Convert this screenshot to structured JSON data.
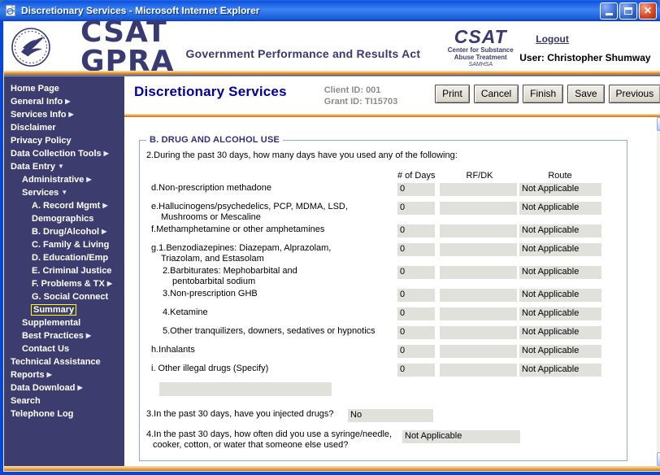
{
  "window": {
    "title": "Discretionary Services - Microsoft Internet Explorer"
  },
  "banner": {
    "logotype": "CSAT GPRA",
    "subtitle": "Government Performance and Results Act",
    "csat_logo": {
      "line1": "CSAT",
      "line2": "Center for Substance",
      "line3": "Abuse Treatment",
      "line4": "SAMHSA"
    },
    "logout_label": "Logout",
    "user_label": "User: Christopher Shumway"
  },
  "sidebar": {
    "items": [
      {
        "label": "Home Page",
        "indent": 0,
        "arrow": null,
        "selected": false
      },
      {
        "label": "General Info",
        "indent": 0,
        "arrow": "right",
        "selected": false
      },
      {
        "label": "Services Info",
        "indent": 0,
        "arrow": "right",
        "selected": false
      },
      {
        "label": "Disclaimer",
        "indent": 0,
        "arrow": null,
        "selected": false
      },
      {
        "label": "Privacy Policy",
        "indent": 0,
        "arrow": null,
        "selected": false
      },
      {
        "label": "Data Collection Tools",
        "indent": 0,
        "arrow": "right",
        "selected": false
      },
      {
        "label": "Data Entry",
        "indent": 0,
        "arrow": "down",
        "selected": false
      },
      {
        "label": "Administrative",
        "indent": 1,
        "arrow": "right",
        "selected": false
      },
      {
        "label": "Services",
        "indent": 1,
        "arrow": "down",
        "selected": false
      },
      {
        "label": "A. Record Mgmt",
        "indent": 2,
        "arrow": "right",
        "selected": false
      },
      {
        "label": "Demographics",
        "indent": 2,
        "arrow": null,
        "selected": false
      },
      {
        "label": "B. Drug/Alcohol",
        "indent": 2,
        "arrow": "right",
        "selected": false
      },
      {
        "label": "C. Family & Living",
        "indent": 2,
        "arrow": null,
        "selected": false
      },
      {
        "label": "D. Education/Emp",
        "indent": 2,
        "arrow": null,
        "selected": false
      },
      {
        "label": "E. Criminal Justice",
        "indent": 2,
        "arrow": null,
        "selected": false
      },
      {
        "label": "F. Problems & TX",
        "indent": 2,
        "arrow": "right",
        "selected": false
      },
      {
        "label": "G. Social Connect",
        "indent": 2,
        "arrow": null,
        "selected": false
      },
      {
        "label": "Summary",
        "indent": 2,
        "arrow": null,
        "selected": true
      },
      {
        "label": "Supplemental",
        "indent": 1,
        "arrow": null,
        "selected": false
      },
      {
        "label": "Best Practices",
        "indent": 1,
        "arrow": "right",
        "selected": false
      },
      {
        "label": "Contact Us",
        "indent": 1,
        "arrow": null,
        "selected": false
      },
      {
        "label": "Technical Assistance",
        "indent": 0,
        "arrow": null,
        "selected": false
      },
      {
        "label": "Reports",
        "indent": 0,
        "arrow": "right",
        "selected": false
      },
      {
        "label": "Data Download",
        "indent": 0,
        "arrow": "right",
        "selected": false
      },
      {
        "label": "Search",
        "indent": 0,
        "arrow": null,
        "selected": false
      },
      {
        "label": "Telephone Log",
        "indent": 0,
        "arrow": null,
        "selected": false
      }
    ]
  },
  "content": {
    "title": "Discretionary Services",
    "client_id": "Client ID: 001",
    "grant_id": "Grant ID: TI15703",
    "buttons": [
      "Print",
      "Cancel",
      "Finish",
      "Save",
      "Previous"
    ],
    "section": {
      "legend": "B. DRUG AND ALCOHOL USE",
      "q2": "2.During the past 30 days, how many days have you used any of the following:",
      "columns": [
        "# of Days",
        "RF/DK",
        "Route"
      ],
      "rows": [
        {
          "line1": "d.Non-prescription methadone",
          "line2": "",
          "indent": 0,
          "days": "0",
          "rfdk": "",
          "route": "Not Applicable"
        },
        {
          "line1": "e.Hallucinogens/psychedelics, PCP, MDMA, LSD,",
          "line2": "Mushrooms or Mescaline",
          "indent": 0,
          "days": "0",
          "rfdk": "",
          "route": "Not Applicable"
        },
        {
          "line1": "f.Methamphetamine or other amphetamines",
          "line2": "",
          "indent": 0,
          "days": "0",
          "rfdk": "",
          "route": "Not Applicable"
        },
        {
          "line1": "g.1.Benzodiazepines: Diazepam, Alprazolam,",
          "line2": "Triazolam, and Estasolam",
          "indent": 0,
          "days": "0",
          "rfdk": "",
          "route": "Not Applicable"
        },
        {
          "line1": "2.Barbiturates: Mephobarbital and",
          "line2": "pentobarbital sodium",
          "indent": 1,
          "days": "0",
          "rfdk": "",
          "route": "Not Applicable"
        },
        {
          "line1": "3.Non-prescription GHB",
          "line2": "",
          "indent": 1,
          "days": "0",
          "rfdk": "",
          "route": "Not Applicable"
        },
        {
          "line1": "4.Ketamine",
          "line2": "",
          "indent": 1,
          "days": "0",
          "rfdk": "",
          "route": "Not Applicable"
        },
        {
          "line1": "5.Other tranquilizers, downers, sedatives or hypnotics",
          "line2": "",
          "indent": 1,
          "days": "0",
          "rfdk": "",
          "route": "Not Applicable"
        },
        {
          "line1": "h.Inhalants",
          "line2": "",
          "indent": 0,
          "days": "0",
          "rfdk": "",
          "route": "Not Applicable"
        },
        {
          "line1": "i. Other illegal drugs (Specify)",
          "line2": "",
          "indent": 0,
          "days": "0",
          "rfdk": "",
          "route": "Not Applicable"
        }
      ],
      "specify_value": "",
      "q3": {
        "label": "3.In the past 30 days, have you injected drugs?",
        "value": "No"
      },
      "q4": {
        "label_line1": "4.In the past 30 days, how often did you use a syringe/needle,",
        "label_line2": "cooker, cotton, or water that someone else used?",
        "value": "Not Applicable"
      }
    }
  },
  "colors": {
    "titlebar_blue": "#1a5cd8",
    "sidebar_navy": "#3c3c6e",
    "brand_navy": "#3a3a72",
    "page_title_blue": "#000099",
    "orange_rule": "#e2942c",
    "selected_outline_yellow": "#ffff00",
    "field_gray": "#e1e1dc"
  }
}
